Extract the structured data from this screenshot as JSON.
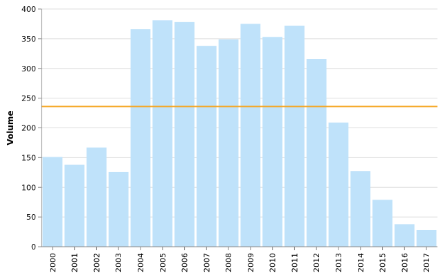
{
  "chart_data": {
    "type": "bar",
    "categories": [
      "2000",
      "2001",
      "2002",
      "2003",
      "2004",
      "2005",
      "2006",
      "2007",
      "2008",
      "2009",
      "2010",
      "2011",
      "2012",
      "2013",
      "2014",
      "2015",
      "2016",
      "2017"
    ],
    "values": [
      151,
      138,
      167,
      126,
      366,
      381,
      378,
      338,
      349,
      375,
      353,
      372,
      316,
      209,
      127,
      79,
      38,
      28
    ],
    "xlabel": "",
    "ylabel": "Volume",
    "ylim": [
      0,
      400
    ],
    "yticks": [
      0,
      50,
      100,
      150,
      200,
      250,
      300,
      350,
      400
    ],
    "reference_line": {
      "value": 236
    },
    "grid": "horizontal",
    "colors": {
      "bar": "#bfe2fa",
      "reference_line": "#f5a623",
      "grid": "#dddddd",
      "axis": "#888888"
    }
  }
}
